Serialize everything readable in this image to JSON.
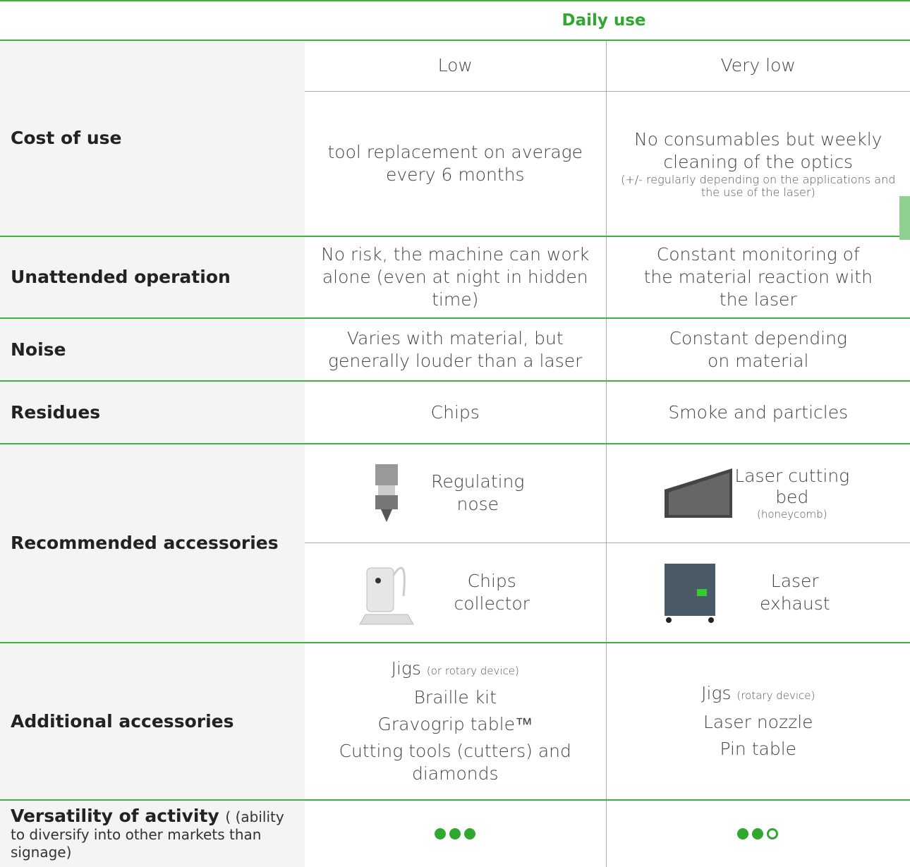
{
  "header": {
    "title": "Daily use"
  },
  "rows": [
    {
      "label": "Cost of use",
      "level": [
        "Low",
        "Very low"
      ],
      "detail": [
        {
          "text": "tool replacement on average every 6 months"
        },
        {
          "text": "No consumables but weekly cleaning of the optics",
          "note": "(+/- regularly depending on the applications and the use of the laser)"
        }
      ]
    },
    {
      "label": "Unattended operation",
      "cells": [
        "No risk, the machine can work alone (even at night in hidden time)",
        "Constant monitoring of the material reaction with the laser"
      ]
    },
    {
      "label": "Noise",
      "cells": [
        "Varies with material, but generally louder than a laser",
        "Constant depending on material"
      ]
    },
    {
      "label": "Residues",
      "cells": [
        "Chips",
        "Smoke and particles"
      ]
    },
    {
      "label": "Recommended accessories",
      "items": [
        [
          {
            "text": "Regulating nose"
          },
          {
            "text": "Laser cutting bed",
            "note": "(honeycomb)"
          }
        ],
        [
          {
            "text": "Chips collector"
          },
          {
            "text": "Laser exhaust"
          }
        ]
      ]
    },
    {
      "label": "Additional accessories",
      "lists": [
        [
          {
            "text": "Jigs",
            "note": "(or rotary device)"
          },
          {
            "text": "Braille kit"
          },
          {
            "text": "Gravogrip table™"
          },
          {
            "text": "Cutting tools (cutters) and diamonds"
          }
        ],
        [
          {
            "text": "Jigs",
            "note": "(rotary device)"
          },
          {
            "text": "Laser nozzle"
          },
          {
            "text": "Pin table"
          }
        ]
      ]
    },
    {
      "label": "Versatility of activity",
      "note": "( (ability to diversify into other markets than signage)",
      "ratings": [
        3,
        2
      ],
      "rating_max": 3
    }
  ]
}
